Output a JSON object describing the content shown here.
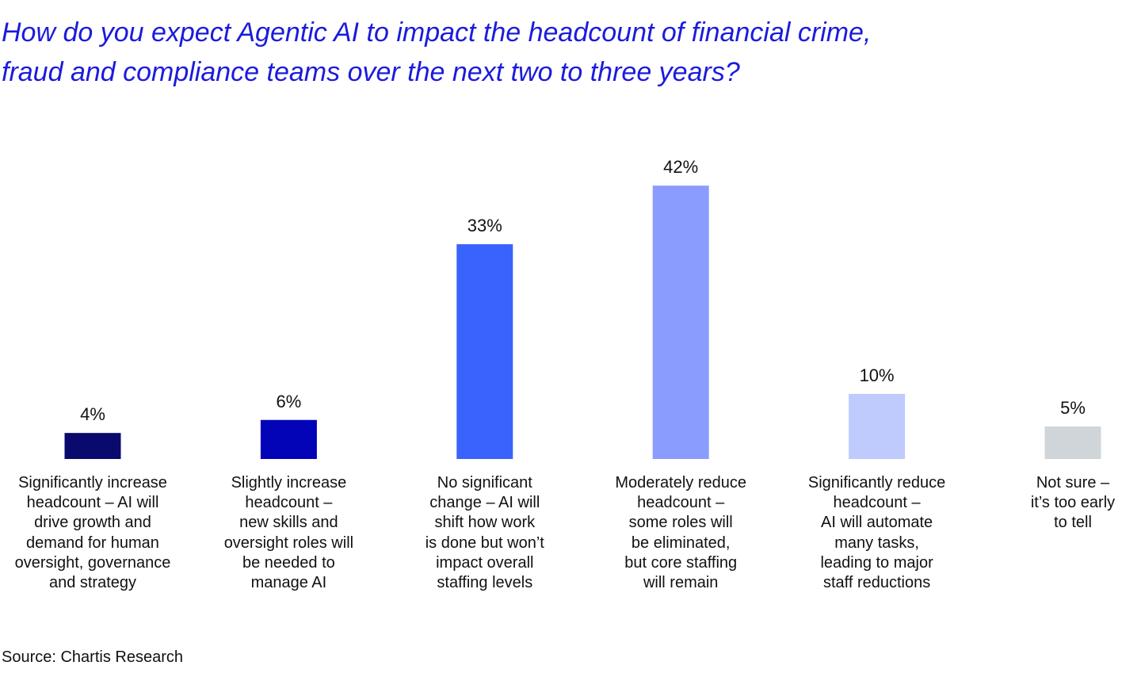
{
  "chart_data": {
    "type": "bar",
    "title": "How do you expect Agentic AI to impact the headcount of financial crime,\nfraud and compliance teams over the next two to three years?",
    "categories": [
      "Significantly increase\nheadcount – AI will\ndrive growth and\ndemand for human\noversight, governance\nand strategy",
      "Slightly increase\nheadcount –\nnew skills and\noversight roles will\nbe needed to\nmanage AI",
      "No significant\nchange – AI will\nshift how work\nis done but won’t\nimpact overall\nstaffing levels",
      "Moderately reduce\nheadcount –\nsome roles will\nbe eliminated,\nbut core staffing\nwill remain",
      "Significantly reduce\nheadcount –\nAI will automate\nmany tasks,\nleading to major\nstaff reductions",
      "Not sure –\nit’s too early\nto tell"
    ],
    "values": [
      4,
      6,
      33,
      42,
      10,
      5
    ],
    "value_labels": [
      "4%",
      "6%",
      "33%",
      "42%",
      "10%",
      "5%"
    ],
    "colors": [
      "#0a0a6e",
      "#0303b8",
      "#3a63fd",
      "#8a9cfd",
      "#bfcafd",
      "#cfd5d8"
    ],
    "source": "Source: Chartis Research"
  }
}
